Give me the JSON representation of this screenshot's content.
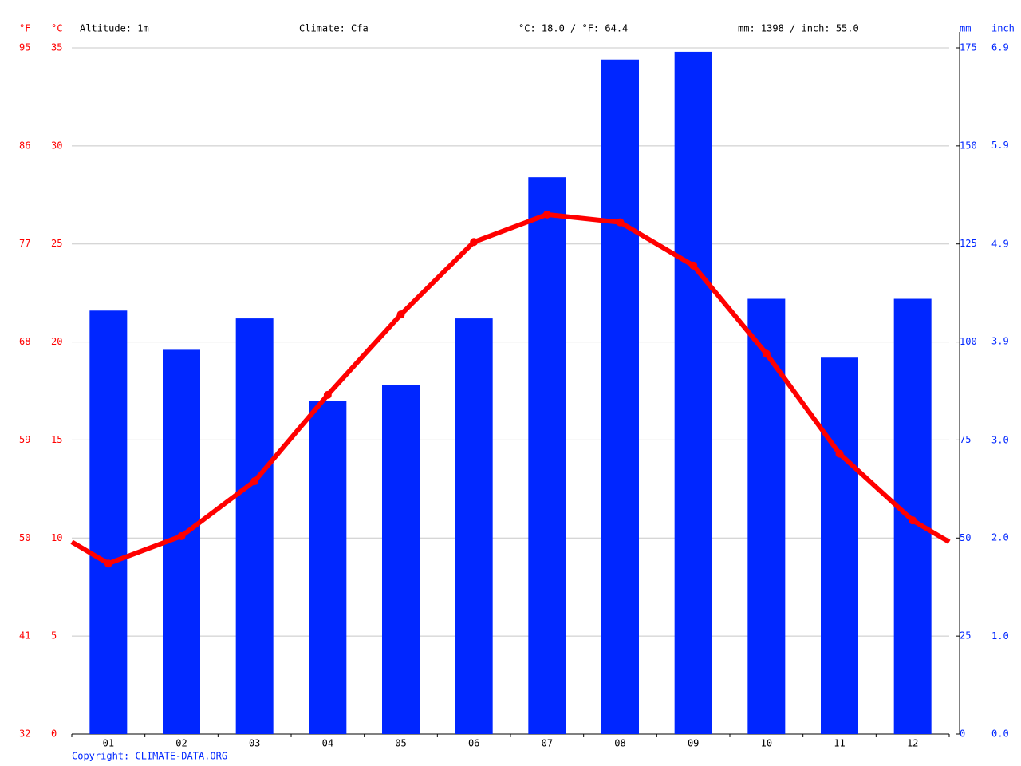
{
  "chart_data": {
    "type": "bar",
    "annotations": [
      "Altitude: 1m",
      "Climate: Cfa",
      "°C: 18.0 / °F: 64.4",
      "mm: 1398 / inch: 55.0"
    ],
    "copyright": "Copyright: CLIMATE-DATA.ORG",
    "y_label": "°C",
    "y3_label": "°F",
    "y2_label": "mm",
    "y4_label": "inch",
    "categories": [
      "01",
      "02",
      "03",
      "04",
      "05",
      "06",
      "07",
      "08",
      "09",
      "10",
      "11",
      "12"
    ],
    "series": [
      {
        "type": "bar",
        "axis": "y2",
        "color": "#0026ff",
        "values": [
          108,
          98,
          106,
          85,
          89,
          106,
          142,
          172,
          174,
          111,
          96,
          111
        ]
      },
      {
        "type": "line",
        "color": "#ff0000",
        "values": [
          8.7,
          10.1,
          12.9,
          17.3,
          21.4,
          25.1,
          26.5,
          26.1,
          23.9,
          19.4,
          14.3,
          10.9
        ]
      }
    ],
    "ylim": [
      0,
      35
    ],
    "yticks": [
      0,
      5,
      10,
      15,
      20,
      25,
      30,
      35
    ],
    "y3lim": [
      32,
      95
    ],
    "y3ticks": [
      32,
      41,
      50,
      59,
      68,
      77,
      86,
      95
    ],
    "y2lim": [
      0,
      175
    ],
    "y2ticks": [
      0,
      25,
      50,
      75,
      100,
      125,
      150,
      175
    ],
    "y4lim": [
      0,
      6.89
    ],
    "y4ticks": [
      {
        "value": 0,
        "label": "0.0"
      },
      {
        "value": 0.98,
        "label": "1.0"
      },
      {
        "value": 1.97,
        "label": "2.0"
      },
      {
        "value": 2.95,
        "label": "3.0"
      },
      {
        "value": 3.94,
        "label": "3.9"
      },
      {
        "value": 4.92,
        "label": "4.9"
      },
      {
        "value": 5.91,
        "label": "5.9"
      },
      {
        "value": 6.89,
        "label": "6.9"
      }
    ],
    "grid": true
  }
}
